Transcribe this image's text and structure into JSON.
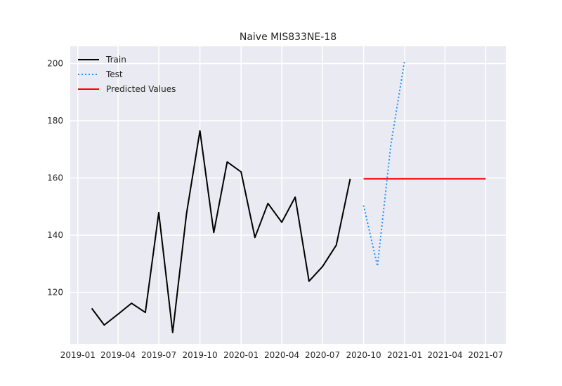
{
  "chart_data": {
    "type": "line",
    "title": "Naive MIS833NE-18",
    "xlabel": "",
    "ylabel": "",
    "x_type": "date",
    "xlim": [
      "2018-12-15",
      "2021-08-15"
    ],
    "ylim": [
      102,
      206
    ],
    "grid": true,
    "legend_position": "top-left",
    "x_ticks": [
      "2019-01-01",
      "2019-04-01",
      "2019-07-01",
      "2019-10-01",
      "2020-01-01",
      "2020-04-01",
      "2020-07-01",
      "2020-10-01",
      "2021-01-01",
      "2021-04-01",
      "2021-07-01"
    ],
    "x_tick_labels": [
      "2019-01",
      "2019-04",
      "2019-07",
      "2019-10",
      "2020-01",
      "2020-04",
      "2020-07",
      "2020-10",
      "2021-01",
      "2021-04",
      "2021-07"
    ],
    "y_ticks": [
      120,
      140,
      160,
      180,
      200
    ],
    "series": [
      {
        "name": "Train",
        "color": "#000000",
        "style": "solid",
        "x": [
          "2019-02-01",
          "2019-03-01",
          "2019-04-01",
          "2019-05-01",
          "2019-06-01",
          "2019-07-01",
          "2019-08-01",
          "2019-09-01",
          "2019-10-01",
          "2019-11-01",
          "2019-12-01",
          "2020-01-01",
          "2020-02-01",
          "2020-03-01",
          "2020-04-01",
          "2020-05-01",
          "2020-06-01",
          "2020-07-01",
          "2020-08-01",
          "2020-09-01"
        ],
        "y": [
          114.4,
          108.6,
          112.4,
          116.2,
          113.0,
          147.9,
          106.0,
          147.5,
          176.5,
          140.9,
          165.6,
          162.1,
          139.2,
          151.1,
          144.5,
          153.3,
          123.9,
          129.0,
          136.5,
          159.7
        ]
      },
      {
        "name": "Test",
        "color": "#1e90ff",
        "style": "dotted",
        "x": [
          "2020-10-01",
          "2020-11-01",
          "2020-12-01",
          "2021-01-01"
        ],
        "y": [
          150.4,
          129.2,
          171.6,
          201.2
        ]
      },
      {
        "name": "Predicted Values",
        "color": "#ff0000",
        "style": "solid",
        "x": [
          "2020-10-01",
          "2021-07-01"
        ],
        "y": [
          159.7,
          159.7
        ]
      }
    ]
  }
}
